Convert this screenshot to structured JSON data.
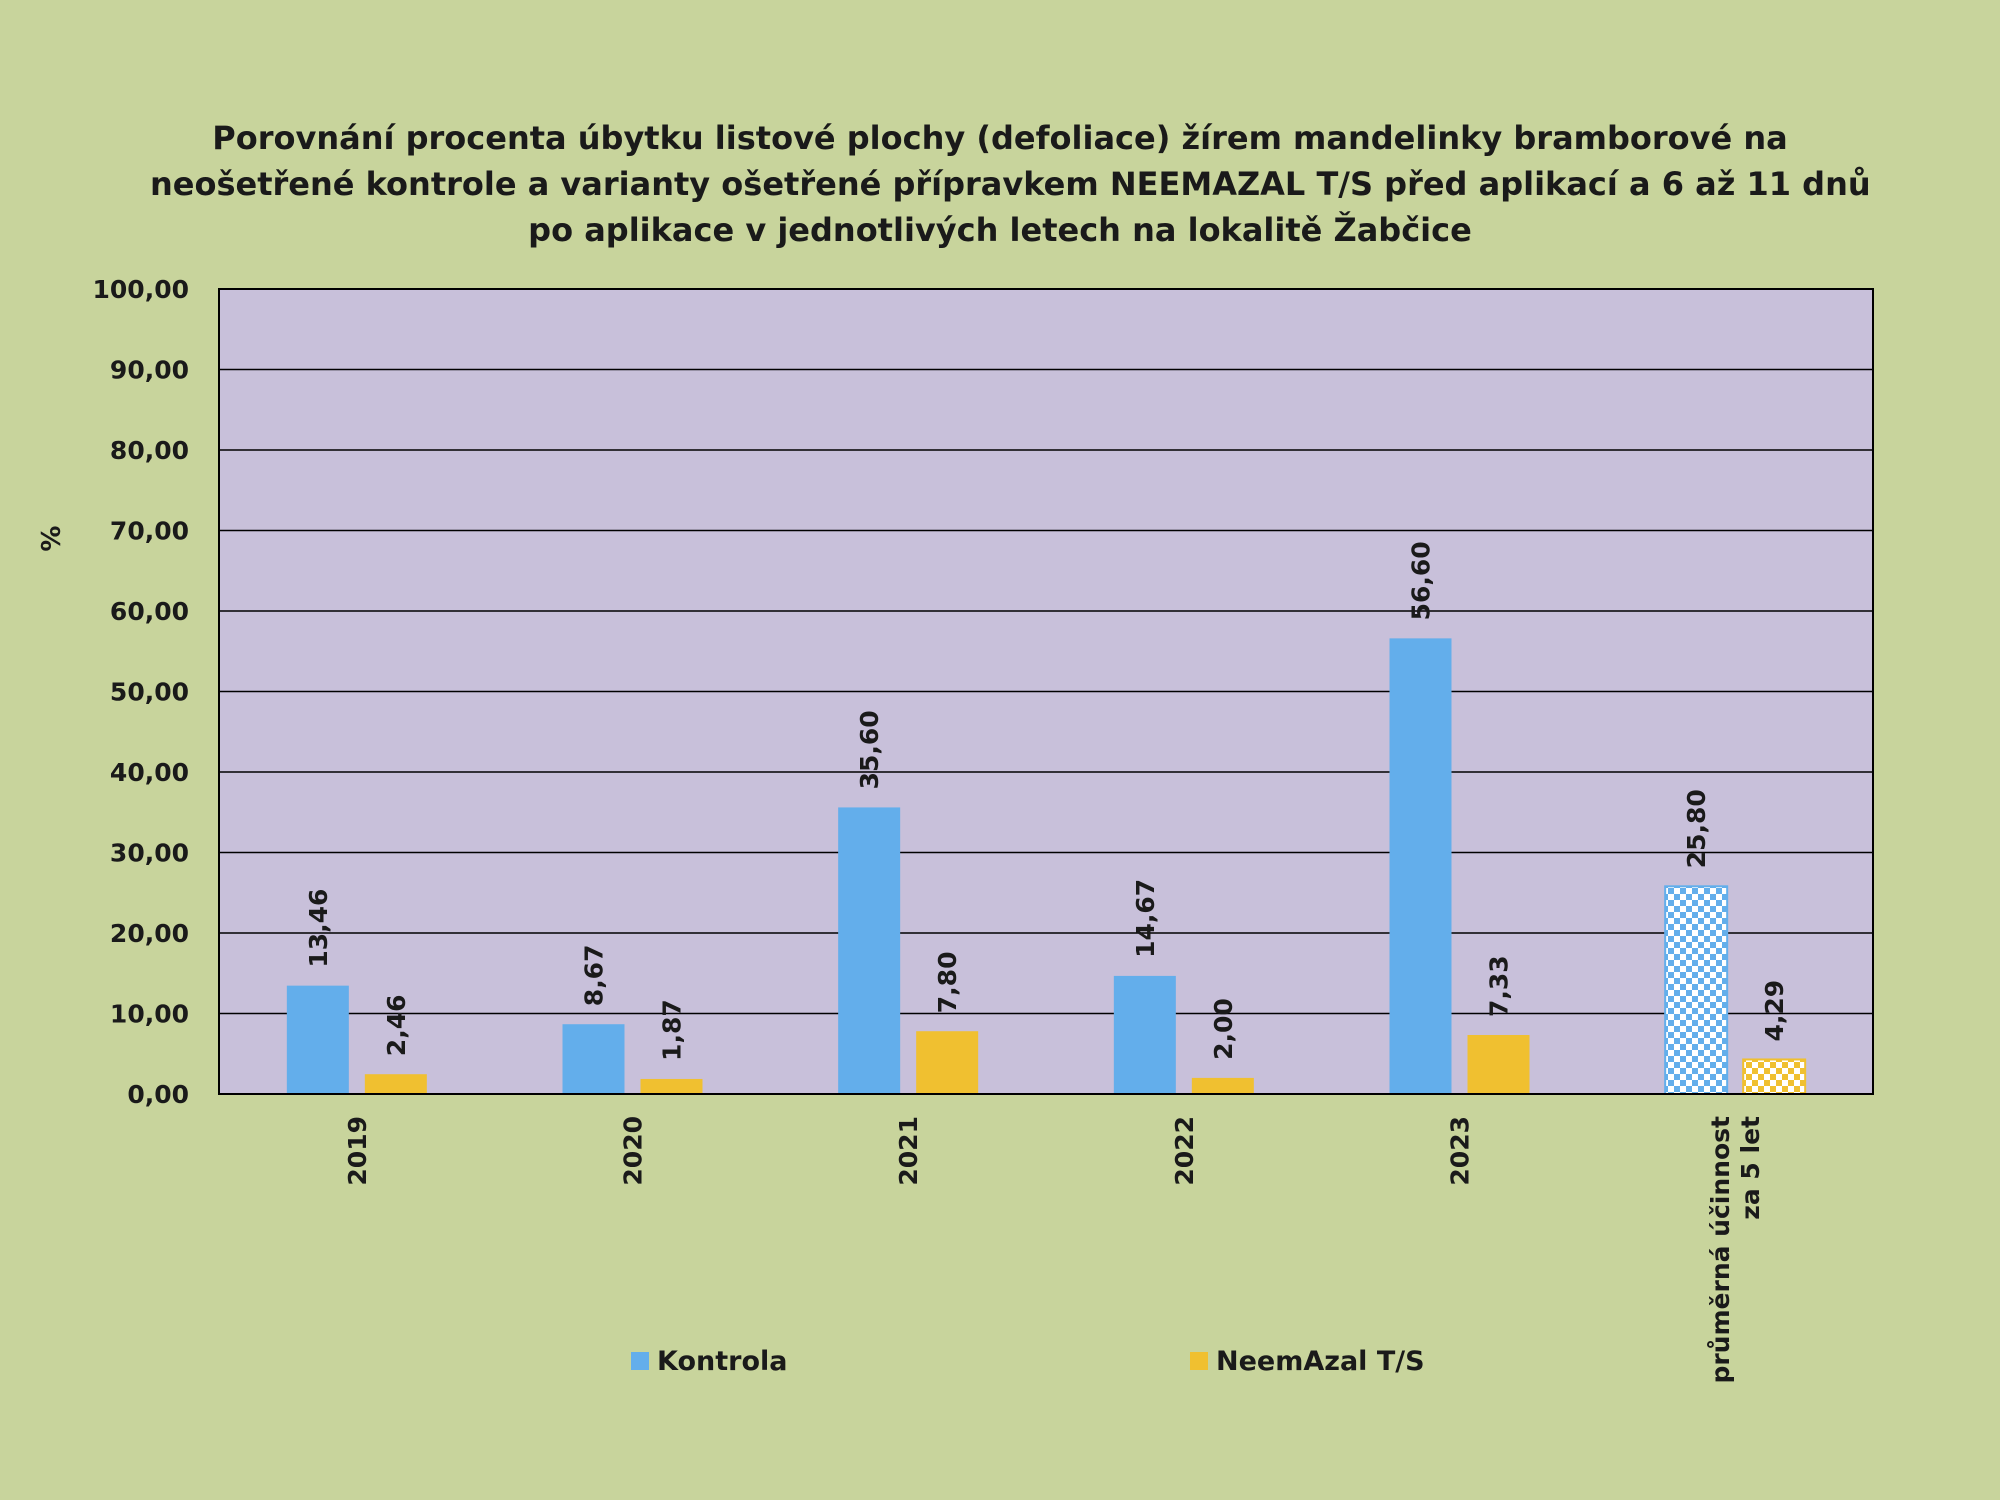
{
  "chart_data": {
    "type": "bar",
    "title_lines": [
      "Porovnání procenta úbytku listové plochy (defoliace) žírem mandelinky bramborové na",
      "neošetřené kontrole a varianty ošetřené přípravkem NEEMAZAL T/S před aplikací a  6 až 11 dnů",
      "po aplikace v jednotlivých letech na lokalitě Žabčice"
    ],
    "ylabel": "%",
    "xlabel": "",
    "ylim": [
      0,
      100
    ],
    "yticks": [
      "0,00",
      "10,00",
      "20,00",
      "30,00",
      "40,00",
      "50,00",
      "60,00",
      "70,00",
      "80,00",
      "90,00",
      "100,00"
    ],
    "grid": true,
    "legend_position": "bottom",
    "categories": [
      [
        "2019"
      ],
      [
        "2020"
      ],
      [
        "2021"
      ],
      [
        "2022"
      ],
      [
        "2023"
      ],
      [
        "průměrná účinnost",
        "za 5 let"
      ]
    ],
    "series": [
      {
        "name": "Kontrola",
        "color": "#63aeeb",
        "values": [
          13.46,
          8.67,
          35.6,
          14.67,
          56.6,
          25.8
        ],
        "labels": [
          "13,46",
          "8,67",
          "35,60",
          "14,67",
          "56,60",
          "25,80"
        ]
      },
      {
        "name": "NeemAzal T/S",
        "color": "#f0c030",
        "values": [
          2.46,
          1.87,
          7.8,
          2.0,
          7.33,
          4.29
        ],
        "labels": [
          "2,46",
          "1,87",
          "7,80",
          "2,00",
          "7,33",
          "4,29"
        ]
      }
    ],
    "patterned_category_index": 5,
    "plot_background": "#c8c0da",
    "page_background": "#c8d49c"
  }
}
